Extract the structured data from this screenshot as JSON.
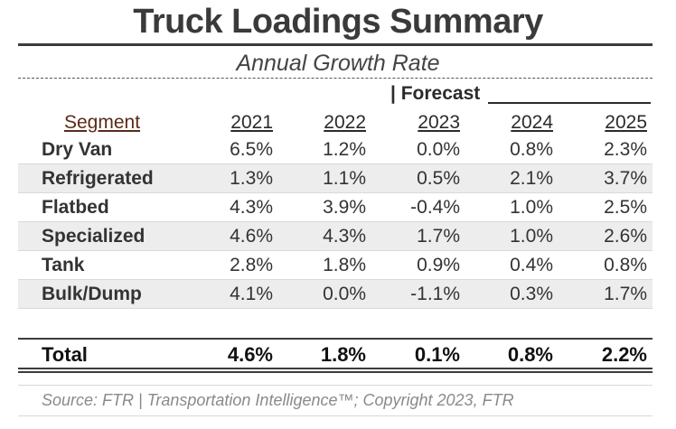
{
  "title": "Truck Loadings Summary",
  "subtitle": "Annual Growth Rate",
  "forecast_label": "| Forecast",
  "columns": {
    "segment": "Segment",
    "years": [
      "2021",
      "2022",
      "2023",
      "2024",
      "2025"
    ]
  },
  "rows": [
    {
      "segment": "Dry Van",
      "values": [
        "6.5%",
        "1.2%",
        "0.0%",
        "0.8%",
        "2.3%"
      ]
    },
    {
      "segment": "Refrigerated",
      "values": [
        "1.3%",
        "1.1%",
        "0.5%",
        "2.1%",
        "3.7%"
      ]
    },
    {
      "segment": "Flatbed",
      "values": [
        "4.3%",
        "3.9%",
        "-0.4%",
        "1.0%",
        "2.5%"
      ]
    },
    {
      "segment": "Specialized",
      "values": [
        "4.6%",
        "4.3%",
        "1.7%",
        "1.0%",
        "2.6%"
      ]
    },
    {
      "segment": "Tank",
      "values": [
        "2.8%",
        "1.8%",
        "0.9%",
        "0.4%",
        "0.8%"
      ]
    },
    {
      "segment": "Bulk/Dump",
      "values": [
        "4.1%",
        "0.0%",
        "-1.1%",
        "0.3%",
        "1.7%"
      ]
    }
  ],
  "total": {
    "segment": "Total",
    "values": [
      "4.6%",
      "1.8%",
      "0.1%",
      "0.8%",
      "2.2%"
    ]
  },
  "source": "Source: FTR | Transportation Intelligence™; Copyright 2023, FTR",
  "colors": {
    "row_shade": "#ededed",
    "segment_header": "#5a2b17",
    "rule": "#3c3c3c"
  }
}
